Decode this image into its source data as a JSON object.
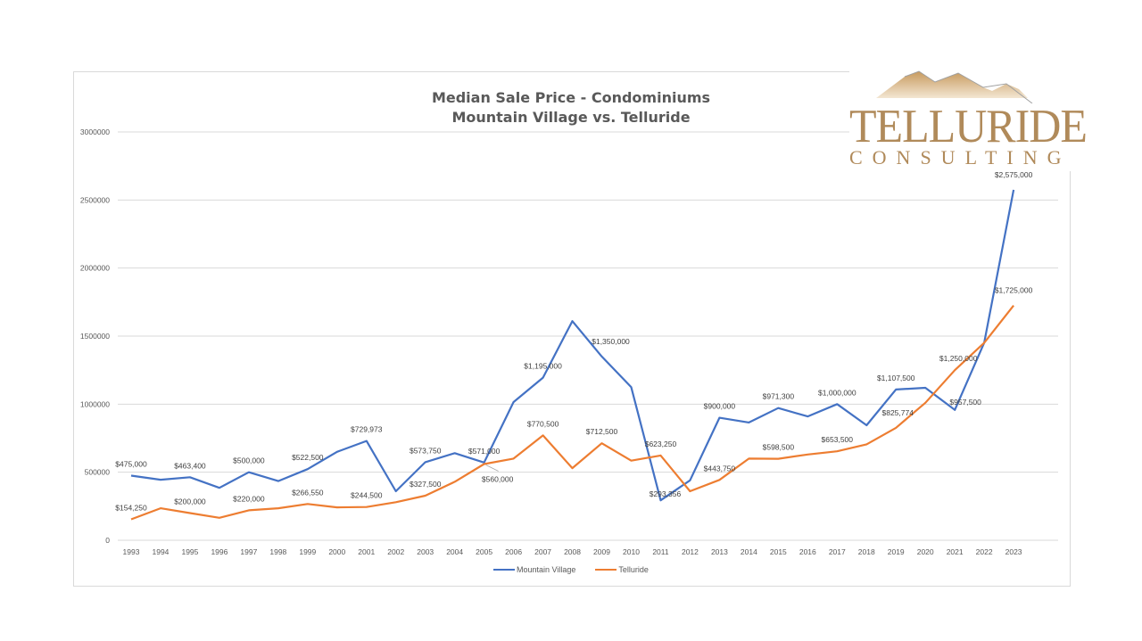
{
  "chart_data": {
    "type": "line",
    "title": "Median Sale Price - Condominiums",
    "subtitle": "Mountain Village vs. Telluride",
    "xlabel": "",
    "ylabel": "",
    "ylim": [
      0,
      3000000
    ],
    "yticks": [
      "0",
      "500000",
      "1000000",
      "1500000",
      "2000000",
      "2500000",
      "3000000"
    ],
    "grid": true,
    "legend_position": "bottom",
    "categories": [
      "1993",
      "1994",
      "1995",
      "1996",
      "1997",
      "1998",
      "1999",
      "2000",
      "2001",
      "2002",
      "2003",
      "2004",
      "2005",
      "2006",
      "2007",
      "2008",
      "2009",
      "2010",
      "2011",
      "2012",
      "2013",
      "2014",
      "2015",
      "2016",
      "2017",
      "2018",
      "2019",
      "2020",
      "2021",
      "2022",
      "2023"
    ],
    "series": [
      {
        "name": "Mountain Village",
        "color": "#4472c4",
        "values": [
          475000,
          445000,
          463400,
          385000,
          500000,
          435000,
          522500,
          650000,
          729973,
          360000,
          573750,
          640000,
          571000,
          1015000,
          1195000,
          1610000,
          1350000,
          1125000,
          293356,
          440000,
          900000,
          865000,
          971300,
          910000,
          1000000,
          845000,
          1107500,
          1120000,
          957500,
          1450000,
          2575000
        ],
        "labels": {
          "1993": "$475,000",
          "1995": "$463,400",
          "1997": "$500,000",
          "1999": "$522,500",
          "2001": "$729,973",
          "2003": "$573,750",
          "2005": "$571,000",
          "2007": "$1,195,000",
          "2009": "$1,350,000",
          "2011": "$293,356",
          "2013": "$900,000",
          "2015": "$971,300",
          "2017": "$1,000,000",
          "2019": "$1,107,500",
          "2021": "$957,500",
          "2023": "$2,575,000"
        }
      },
      {
        "name": "Telluride",
        "color": "#ed7d31",
        "values": [
          154250,
          235000,
          200000,
          165000,
          220000,
          235000,
          266550,
          242000,
          244500,
          280000,
          327500,
          430000,
          560000,
          600000,
          770500,
          530000,
          712500,
          585000,
          623250,
          360000,
          443750,
          600000,
          598500,
          630000,
          653500,
          705000,
          825774,
          1010000,
          1250000,
          1450000,
          1725000
        ],
        "labels": {
          "1993": "$154,250",
          "1995": "$200,000",
          "1997": "$220,000",
          "1999": "$266,550",
          "2001": "$244,500",
          "2003": "$327,500",
          "2005": "$560,000",
          "2007": "$770,500",
          "2009": "$712,500",
          "2011": "$623,250",
          "2013": "$443,750",
          "2015": "$598,500",
          "2017": "$653,500",
          "2019": "$825,774",
          "2021": "$1,250,000",
          "2023": "$1,725,000"
        }
      }
    ]
  },
  "logo": {
    "word": "TELLURIDE",
    "sub": "CONSULTING"
  },
  "legend": {
    "items": [
      {
        "label": "Mountain Village",
        "color": "#4472c4"
      },
      {
        "label": "Telluride",
        "color": "#ed7d31"
      }
    ]
  }
}
